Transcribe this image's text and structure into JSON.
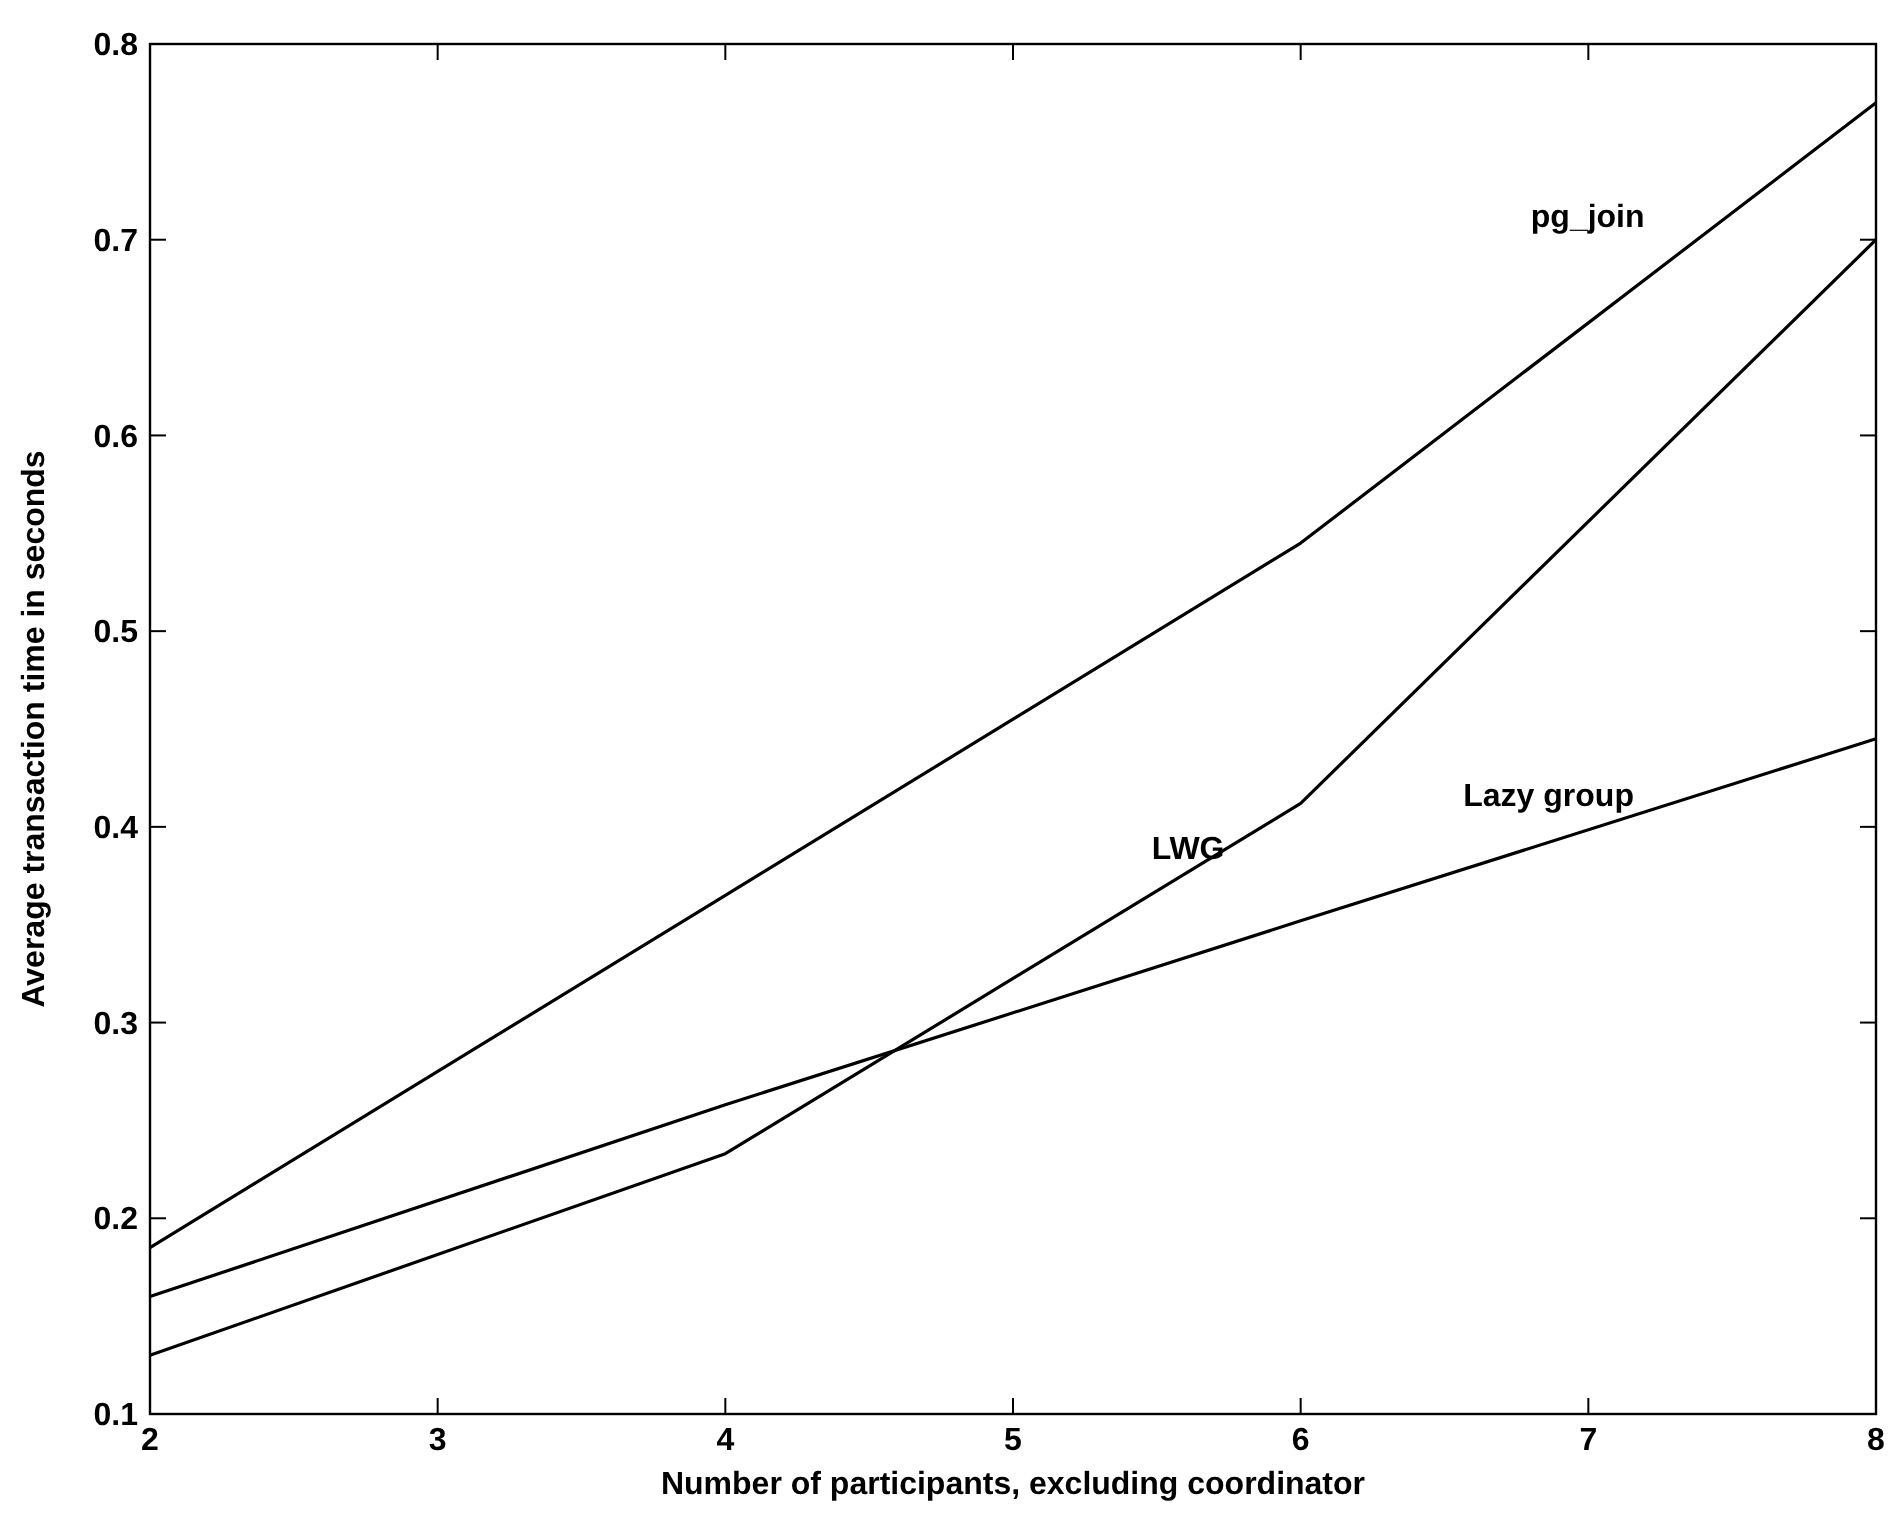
{
  "chart_data": {
    "type": "line",
    "xlabel": "Number of participants, excluding coordinator",
    "ylabel": "Average transaction time in seconds",
    "x": [
      2,
      4,
      6,
      8
    ],
    "series": [
      {
        "name": "pg_join",
        "color": "#000000",
        "values": [
          0.185,
          0.365,
          0.545,
          0.77
        ]
      },
      {
        "name": "LWG",
        "color": "#000000",
        "values": [
          0.13,
          0.233,
          0.412,
          0.7
        ]
      },
      {
        "name": "Lazy group",
        "color": "#000000",
        "values": [
          0.16,
          0.258,
          0.352,
          0.445
        ]
      }
    ],
    "xlim": [
      2,
      8
    ],
    "ylim": [
      0.1,
      0.8
    ],
    "xticks": [
      2,
      3,
      4,
      5,
      6,
      7,
      8
    ],
    "yticks": [
      0.1,
      0.2,
      0.3,
      0.4,
      0.5,
      0.6,
      0.7,
      0.8
    ],
    "grid": false,
    "marker": "none",
    "line_style": "solid"
  }
}
